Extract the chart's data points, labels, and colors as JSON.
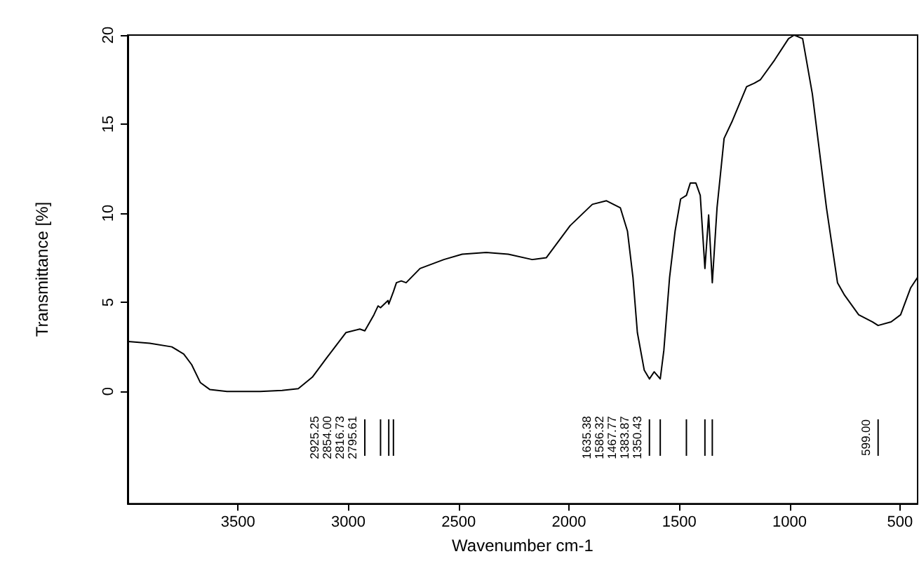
{
  "chart_data": {
    "type": "line",
    "xlabel": "Wavenumber cm-1",
    "ylabel": "Transmittance [%]",
    "xlim": [
      4000,
      420
    ],
    "ylim": [
      -6.3,
      20
    ],
    "xticks": [
      3500,
      3000,
      2500,
      2000,
      1500,
      1000,
      500
    ],
    "yticks": [
      0,
      5,
      10,
      15,
      20
    ],
    "grid": false,
    "marker": "none",
    "line_style": "solid",
    "series": [
      {
        "color": "#000000",
        "x": [
          3997,
          3900,
          3800,
          3746,
          3710,
          3671,
          3627,
          3550,
          3500,
          3400,
          3300,
          3227,
          3163,
          3100,
          3011,
          2948,
          2925.25,
          2884,
          2865,
          2854.0,
          2820,
          2816.73,
          2795.61,
          2782,
          2760,
          2738,
          2675,
          2567,
          2484,
          2375,
          2275,
          2167,
          2103,
          1995,
          1894,
          1830,
          1767,
          1735,
          1710,
          1690,
          1659,
          1635.38,
          1614,
          1586.32,
          1570,
          1544,
          1519,
          1494,
          1467.77,
          1450,
          1425,
          1405,
          1383.87,
          1367,
          1350.43,
          1329,
          1297,
          1259,
          1195,
          1160,
          1132,
          1068,
          1005,
          979,
          941,
          897,
          833,
          783,
          751,
          687,
          624,
          599,
          540,
          497,
          452,
          420
        ],
        "values": [
          2.8,
          2.7,
          2.5,
          2.1,
          1.5,
          0.5,
          0.1,
          0.0,
          0.0,
          0.0,
          0.05,
          0.15,
          0.8,
          1.85,
          3.3,
          3.5,
          3.4,
          4.3,
          4.8,
          4.7,
          5.1,
          4.9,
          5.6,
          6.1,
          6.2,
          6.1,
          6.9,
          7.4,
          7.7,
          7.8,
          7.7,
          7.4,
          7.5,
          9.3,
          10.5,
          10.7,
          10.3,
          9.0,
          6.4,
          3.3,
          1.2,
          0.7,
          1.1,
          0.7,
          2.3,
          6.4,
          9.0,
          10.8,
          11.0,
          11.7,
          11.7,
          11.0,
          6.9,
          9.9,
          6.1,
          10.3,
          14.2,
          15.2,
          17.1,
          17.3,
          17.5,
          18.6,
          19.8,
          20.0,
          19.8,
          16.7,
          10.3,
          6.1,
          5.4,
          4.3,
          3.9,
          3.7,
          3.9,
          4.3,
          5.8,
          6.4
        ]
      }
    ],
    "annotations": [
      "2925.25",
      "2854.00",
      "2816.73",
      "2795.61",
      "1635.38",
      "1586.32",
      "1467.77",
      "1383.87",
      "1350.43",
      "599.00"
    ]
  }
}
